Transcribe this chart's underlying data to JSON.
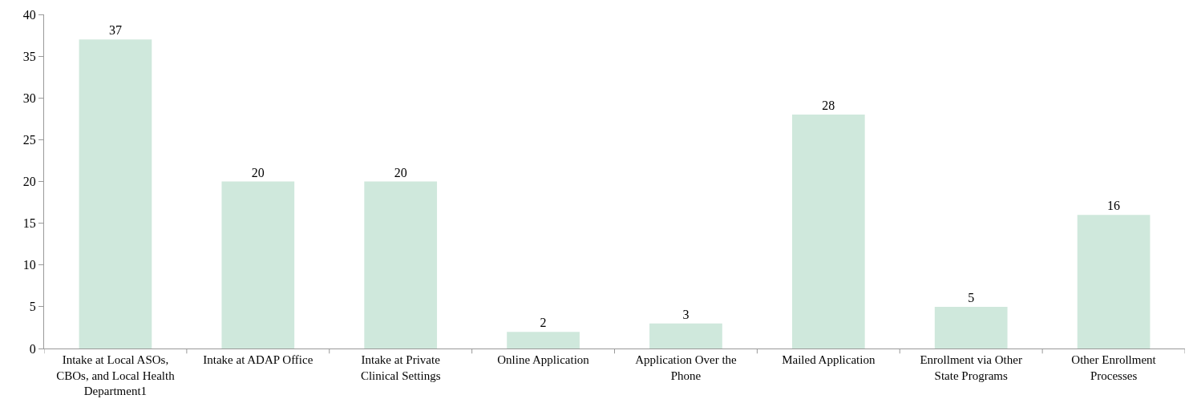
{
  "chart_data": {
    "type": "bar",
    "categories": [
      "Intake at Local ASOs, CBOs, and Local Health Department1",
      "Intake at ADAP Office",
      "Intake at Private Clinical Settings",
      "Online Application",
      "Application Over the Phone",
      "Mailed Application",
      "Enrollment via Other State Programs",
      "Other Enrollment Processes"
    ],
    "values": [
      37,
      20,
      20,
      2,
      3,
      28,
      5,
      16
    ],
    "color": "#cfe8dc",
    "ylim": [
      0,
      40
    ],
    "yticks": [
      0,
      5,
      10,
      15,
      20,
      25,
      30,
      35,
      40
    ],
    "data_labels": true
  }
}
